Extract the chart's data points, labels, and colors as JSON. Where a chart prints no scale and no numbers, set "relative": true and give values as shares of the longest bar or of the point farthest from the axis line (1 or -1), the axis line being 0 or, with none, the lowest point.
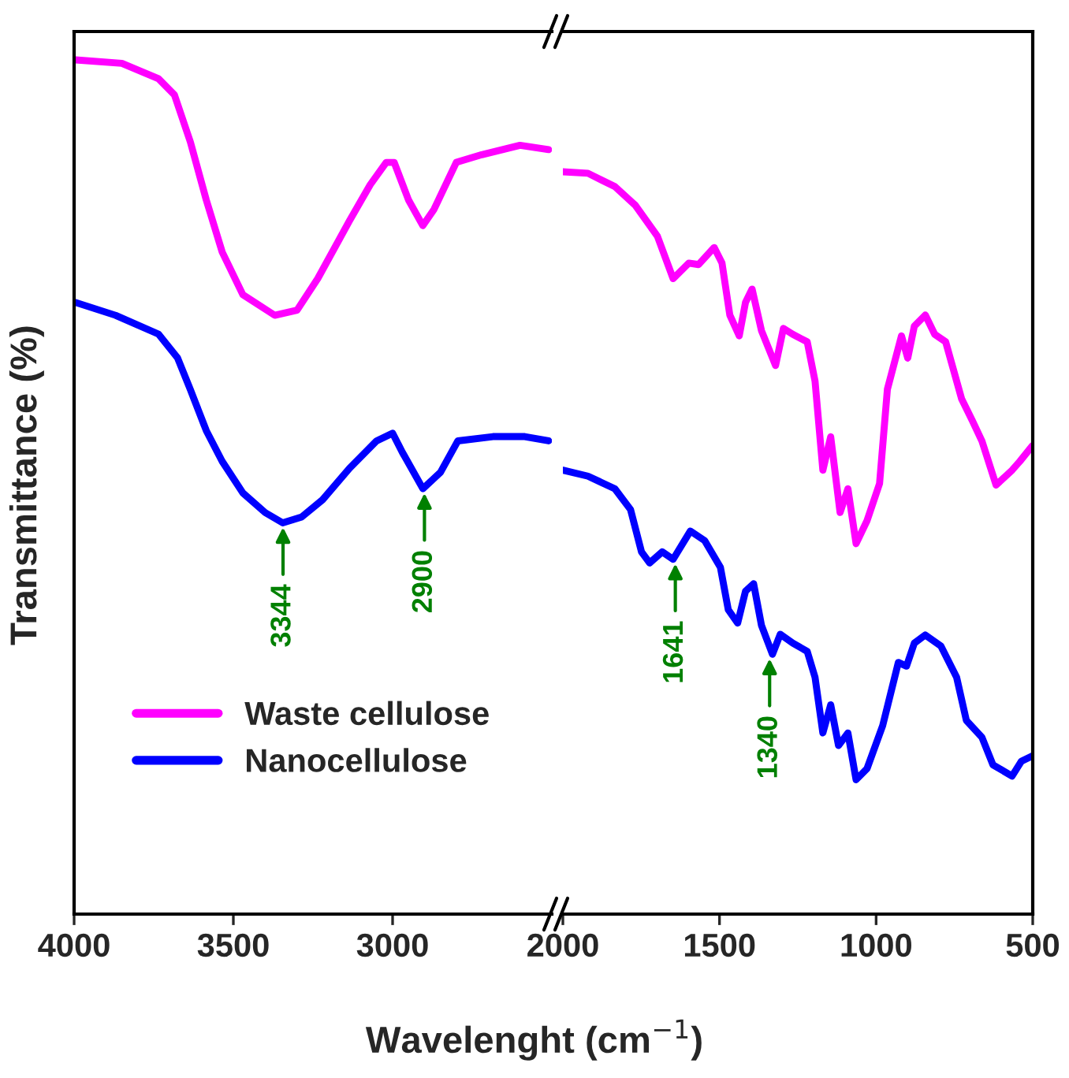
{
  "chart_data": [
    {
      "type": "line",
      "relative": true,
      "xlabel": "Wavelenght (cm$^{−1}$)",
      "ylabel": "Transmittance (%)",
      "xlim": [
        4000,
        2500
      ],
      "xticks": [
        4000,
        3500,
        3000
      ],
      "tick_labels": "x",
      "legend": "bottom",
      "grid": false,
      "marker": "none",
      "line_style": "solid",
      "series": [
        {
          "name": "Waste cellulose",
          "color": "#ff00ff",
          "x": [
            3995,
            3850,
            3735,
            3685,
            3635,
            3585,
            3535,
            3470,
            3370,
            3300,
            3235,
            3135,
            3070,
            3020,
            2995,
            2950,
            2905,
            2870,
            2800,
            2720,
            2600,
            2510
          ],
          "values": [
            1.0,
            0.996,
            0.978,
            0.959,
            0.904,
            0.836,
            0.775,
            0.725,
            0.701,
            0.707,
            0.744,
            0.812,
            0.854,
            0.88,
            0.88,
            0.836,
            0.806,
            0.825,
            0.88,
            0.889,
            0.9,
            0.895
          ]
        },
        {
          "name": "Nanocellulose",
          "color": "#0000ff",
          "x": [
            3995,
            3870,
            3735,
            3675,
            3635,
            3585,
            3535,
            3470,
            3400,
            3345,
            3285,
            3220,
            3135,
            3050,
            3000,
            2970,
            2905,
            2850,
            2795,
            2685,
            2585,
            2510
          ],
          "values": [
            0.716,
            0.701,
            0.679,
            0.651,
            0.614,
            0.566,
            0.53,
            0.493,
            0.47,
            0.458,
            0.465,
            0.485,
            0.522,
            0.554,
            0.563,
            0.541,
            0.498,
            0.517,
            0.554,
            0.559,
            0.559,
            0.554
          ]
        }
      ],
      "annotations": [
        {
          "text": "3344",
          "x": 3344,
          "y": 0.458
        },
        {
          "text": "2900",
          "x": 2900,
          "y": 0.498
        }
      ]
    },
    {
      "type": "line",
      "relative": true,
      "xlim": [
        2000,
        500
      ],
      "xticks": [
        2000,
        1500,
        1000,
        500
      ],
      "tick_labels": "x",
      "grid": false,
      "marker": "none",
      "line_style": "solid",
      "series": [
        {
          "color": "#ff00ff",
          "x": [
            2000,
            1920,
            1834,
            1769,
            1698,
            1648,
            1598,
            1567,
            1517,
            1492,
            1467,
            1437,
            1417,
            1396,
            1366,
            1321,
            1296,
            1266,
            1220,
            1195,
            1170,
            1145,
            1115,
            1090,
            1064,
            1029,
            989,
            964,
            919,
            899,
            878,
            843,
            813,
            778,
            727,
            692,
            662,
            617,
            566,
            541,
            501
          ],
          "values": [
            1.0,
            0.998,
            0.98,
            0.955,
            0.913,
            0.856,
            0.877,
            0.875,
            0.898,
            0.877,
            0.807,
            0.779,
            0.824,
            0.842,
            0.786,
            0.739,
            0.789,
            0.781,
            0.771,
            0.718,
            0.598,
            0.643,
            0.541,
            0.573,
            0.499,
            0.53,
            0.58,
            0.707,
            0.779,
            0.749,
            0.792,
            0.807,
            0.781,
            0.771,
            0.694,
            0.664,
            0.637,
            0.578,
            0.598,
            0.61,
            0.631
          ]
        },
        {
          "color": "#0000ff",
          "x": [
            2000,
            1920,
            1834,
            1784,
            1749,
            1723,
            1683,
            1648,
            1593,
            1547,
            1497,
            1472,
            1442,
            1417,
            1391,
            1366,
            1331,
            1306,
            1266,
            1220,
            1195,
            1170,
            1145,
            1120,
            1090,
            1064,
            1029,
            979,
            929,
            903,
            878,
            843,
            793,
            743,
            712,
            662,
            627,
            566,
            536,
            501
          ],
          "values": [
            0.598,
            0.59,
            0.573,
            0.545,
            0.488,
            0.473,
            0.488,
            0.478,
            0.516,
            0.503,
            0.467,
            0.41,
            0.392,
            0.435,
            0.445,
            0.389,
            0.35,
            0.377,
            0.365,
            0.354,
            0.319,
            0.244,
            0.282,
            0.227,
            0.244,
            0.181,
            0.196,
            0.254,
            0.339,
            0.334,
            0.365,
            0.376,
            0.361,
            0.319,
            0.261,
            0.238,
            0.201,
            0.186,
            0.206,
            0.213
          ]
        }
      ],
      "annotations": [
        {
          "text": "1641",
          "x": 1641,
          "y": 0.478
        },
        {
          "text": "1340",
          "x": 1340,
          "y": 0.35
        }
      ]
    }
  ]
}
